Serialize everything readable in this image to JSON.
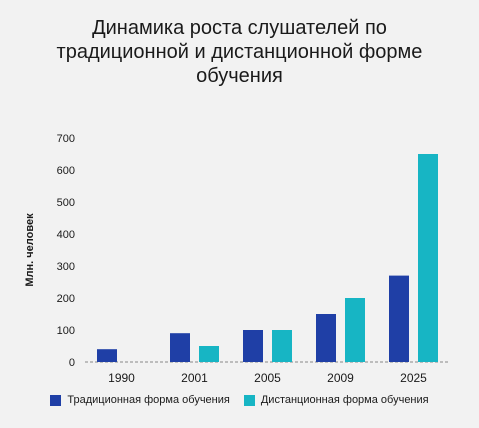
{
  "chart_data": {
    "type": "bar",
    "title": "Динамика роста слушателей по\nтрадиционной и дистанционной форме\nобучения",
    "ylabel": "Млн. человек",
    "xlabel": "",
    "categories": [
      "1990",
      "2001",
      "2005",
      "2009",
      "2025"
    ],
    "series": [
      {
        "name": "Традиционная форма обучения",
        "values": [
          40,
          90,
          100,
          150,
          270
        ],
        "color": "#1f3fa6"
      },
      {
        "name": "Дистанционная форма обучения",
        "values": [
          0,
          50,
          100,
          200,
          650
        ],
        "color": "#17b5c4"
      }
    ],
    "ylim": [
      0,
      700
    ],
    "yticks": [
      "0",
      "100",
      "200",
      "300",
      "400",
      "500",
      "600",
      "700"
    ],
    "grid": false,
    "legend_position": "bottom"
  }
}
